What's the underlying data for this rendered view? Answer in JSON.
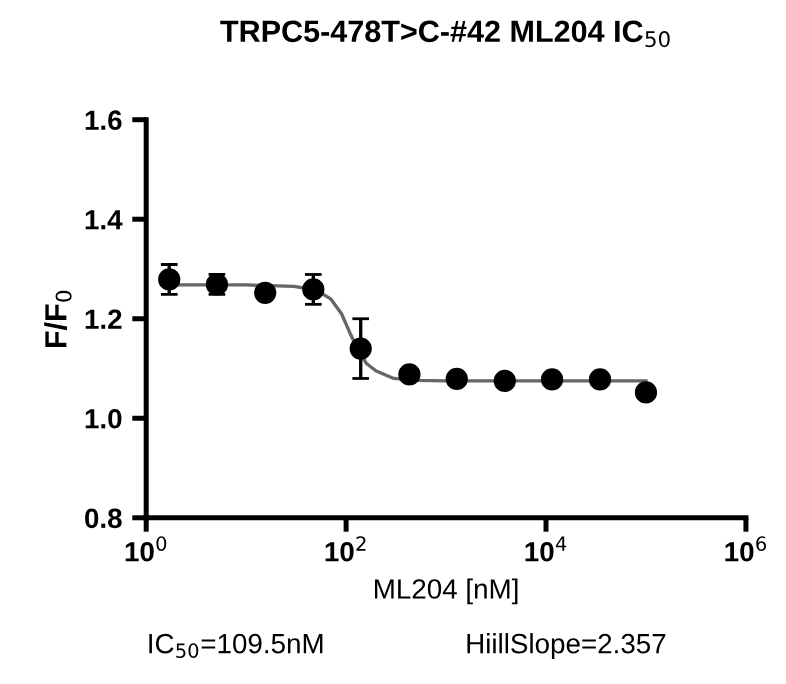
{
  "chart_data": {
    "type": "scatter",
    "title": "TRPC5-478T>C-#42 ML204 IC$_{50}$",
    "xlabel": "ML204 [nM]",
    "ylabel": "F/F$_{0}$",
    "log": "x",
    "xlim": [
      1,
      1000000
    ],
    "xticks": [
      {
        "value": 1,
        "label": "10$^{0}$"
      },
      {
        "value": 100,
        "label": "10$^{2}$"
      },
      {
        "value": 10000,
        "label": "10$^{4}$"
      },
      {
        "value": 1000000,
        "label": "10$^{6}$"
      }
    ],
    "ylim": [
      0.8,
      1.6
    ],
    "yticks": [
      {
        "value": 0.8,
        "label": "0.8"
      },
      {
        "value": 1.0,
        "label": "1.0"
      },
      {
        "value": 1.2,
        "label": "1.2"
      },
      {
        "value": 1.4,
        "label": "1.4"
      },
      {
        "value": 1.6,
        "label": "1.6"
      }
    ],
    "grid": false,
    "legend": false,
    "marker": "circle",
    "series": [
      {
        "color": "#000000",
        "x": [
          1.7,
          5.1,
          15.5,
          47,
          140,
          430,
          1280,
          3870,
          11500,
          34700,
          100000
        ],
        "values": [
          1.279,
          1.269,
          1.252,
          1.259,
          1.14,
          1.088,
          1.079,
          1.075,
          1.078,
          1.078,
          1.052
        ],
        "errors": [
          0.03,
          0.02,
          null,
          0.03,
          0.06,
          null,
          null,
          null,
          null,
          null,
          null
        ]
      },
      {
        "type": "line",
        "color": "#666666",
        "marker": "none",
        "line_style": "solid",
        "x": [
          1.7,
          10,
          30,
          50,
          70,
          90,
          110,
          130,
          160,
          200,
          300,
          500,
          1000,
          10000,
          100000
        ],
        "values": [
          1.268,
          1.268,
          1.265,
          1.258,
          1.24,
          1.21,
          1.17,
          1.14,
          1.11,
          1.095,
          1.08,
          1.076,
          1.075,
          1.075,
          1.075
        ]
      }
    ],
    "annotations": [
      "IC$_{50}$=109.5nM",
      "HiillSlope=2.357"
    ]
  }
}
